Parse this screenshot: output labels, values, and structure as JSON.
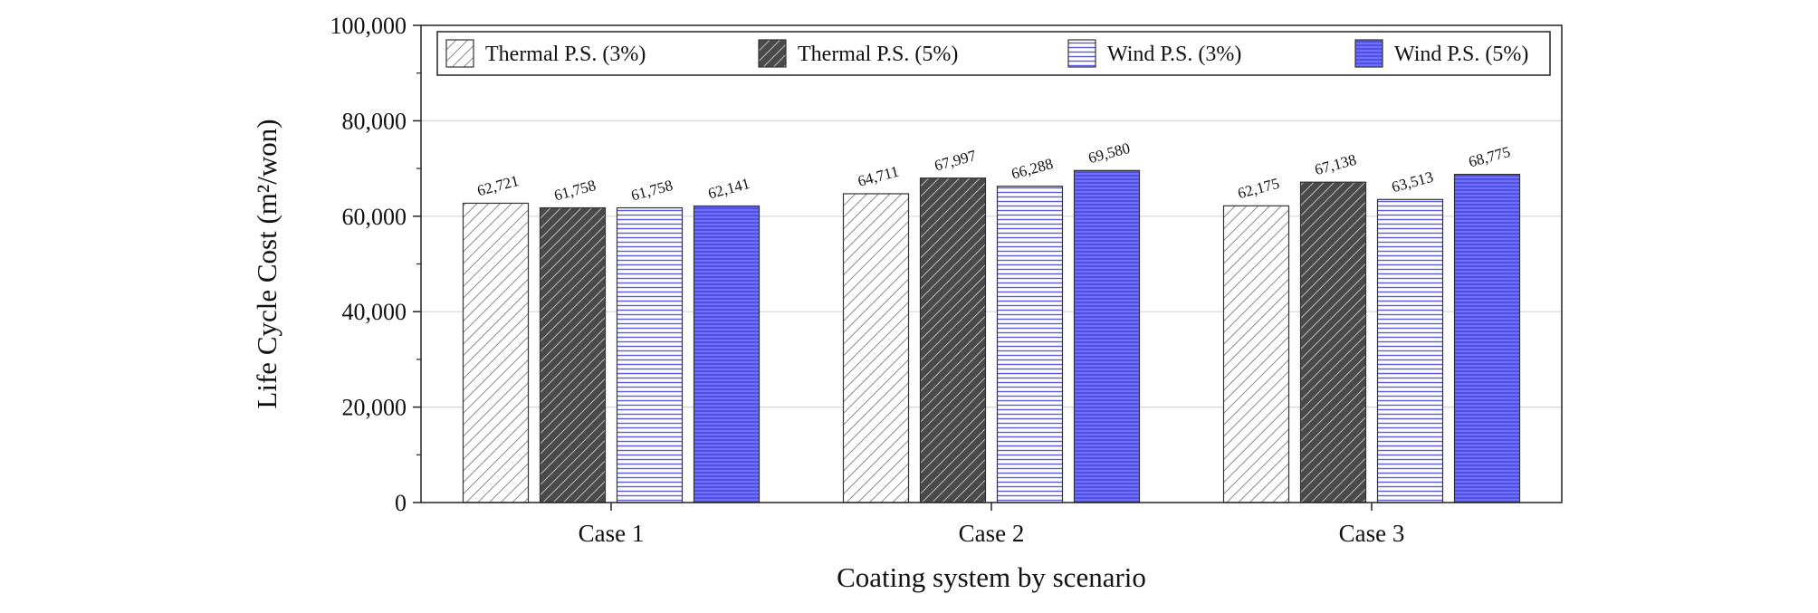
{
  "chart_data": {
    "type": "bar",
    "title": "",
    "xlabel": "Coating system by scenario",
    "ylabel": "Life Cycle Cost (m²/won)",
    "categories": [
      "Case 1",
      "Case 2",
      "Case 3"
    ],
    "ylim": [
      0,
      100000
    ],
    "yticks": [
      0,
      20000,
      40000,
      60000,
      80000,
      100000
    ],
    "ytick_labels": [
      "0",
      "20,000",
      "40,000",
      "60,000",
      "80,000",
      "100,000"
    ],
    "grid": true,
    "legend_position": "top",
    "series": [
      {
        "name": "Thermal P.S. (3%)",
        "values": [
          62721,
          64711,
          62175
        ],
        "labels": [
          "62,721",
          "64,711",
          "62,175"
        ],
        "color": "#ffffff",
        "hatch_color": "#808080",
        "pattern": "diag-light"
      },
      {
        "name": "Thermal P.S. (5%)",
        "values": [
          61758,
          67997,
          67138
        ],
        "labels": [
          "61,758",
          "67,997",
          "67,138"
        ],
        "color": "#555555",
        "hatch_color": "#ffffff",
        "pattern": "diag-dark"
      },
      {
        "name": "Wind P.S. (3%)",
        "values": [
          61758,
          66288,
          63513
        ],
        "labels": [
          "61,758",
          "66,288",
          "63,513"
        ],
        "color": "#ffffff",
        "hatch_color": "#5a5ae8",
        "pattern": "horiz-light"
      },
      {
        "name": "Wind P.S. (5%)",
        "values": [
          62141,
          69580,
          68775
        ],
        "labels": [
          "62,141",
          "69,580",
          "68,775"
        ],
        "color": "#6464f5",
        "hatch_color": "#3232c8",
        "pattern": "horiz-dark"
      }
    ]
  }
}
